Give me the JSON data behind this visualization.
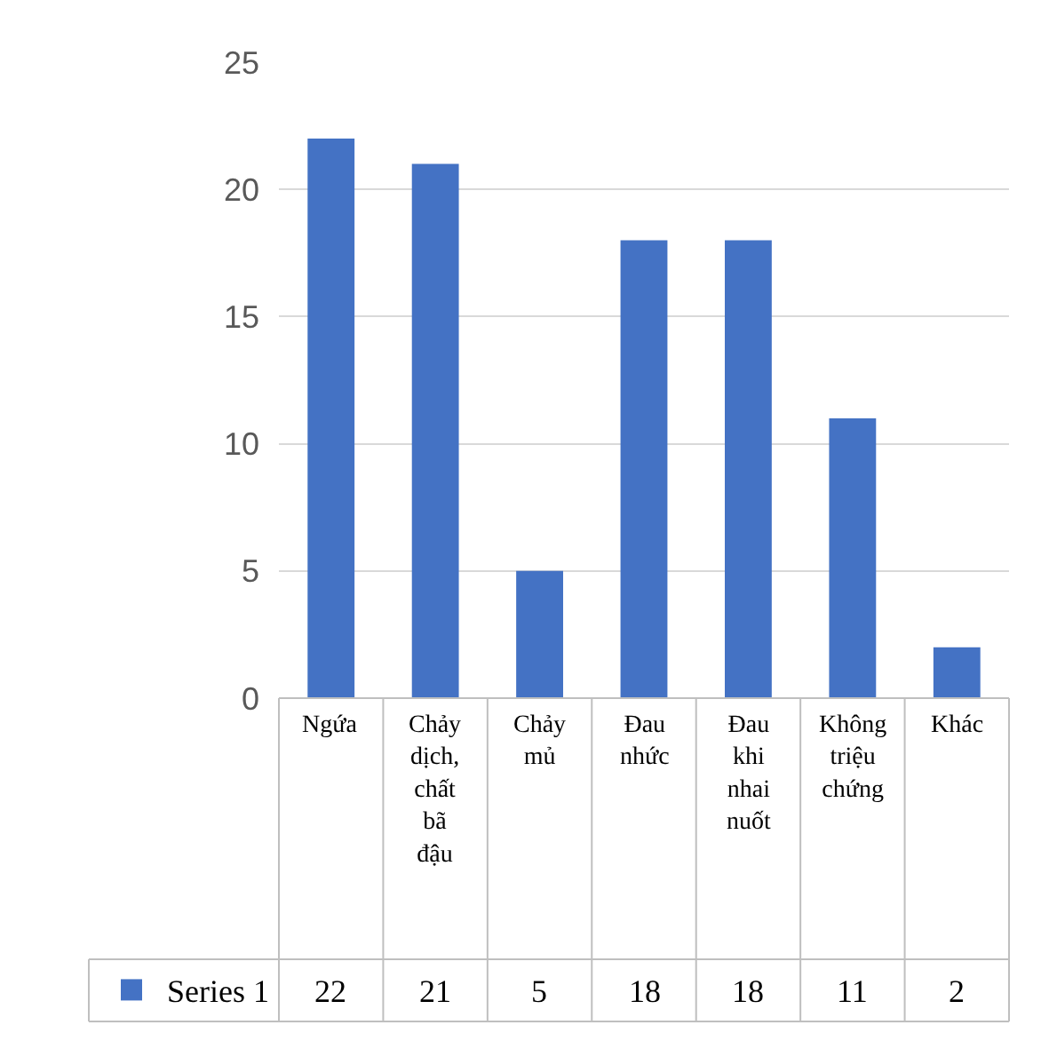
{
  "chart_data": {
    "type": "bar",
    "categories": [
      "Ngứa",
      "Chảy dịch, chất bã đậu",
      "Chảy mủ",
      "Đau nhức",
      "Đau khi nhai nuốt",
      "Không triệu chứng",
      "Khác"
    ],
    "series": [
      {
        "name": "Series 1",
        "color": "#4472c4",
        "values": [
          22,
          21,
          5,
          18,
          18,
          11,
          2
        ]
      }
    ],
    "ylim": [
      0,
      25
    ],
    "yticks": [
      0,
      5,
      10,
      15,
      20,
      25
    ],
    "grid": "y",
    "legend": "bottom left",
    "data_labels": true
  }
}
